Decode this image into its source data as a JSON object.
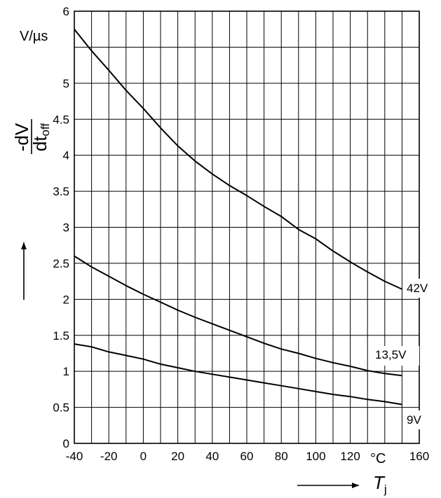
{
  "chart_data": {
    "type": "line",
    "title": "",
    "xlabel": "Tj",
    "xlabel_main": "T",
    "xlabel_sub": "j",
    "ylabel": "-dV/dtoff",
    "ylabel_num": "-dV",
    "ylabel_den_main": "dt",
    "ylabel_den_sub": "off",
    "y_unit": "V/µs",
    "x_unit": "°C",
    "xlim": [
      -40,
      160
    ],
    "ylim": [
      0,
      6
    ],
    "x_ticks": [
      -40,
      -20,
      0,
      20,
      40,
      60,
      80,
      100,
      120,
      160
    ],
    "x_tick_labels": [
      "-40",
      "-20",
      "0",
      "20",
      "40",
      "60",
      "80",
      "100",
      "120",
      "160"
    ],
    "y_ticks": [
      0,
      0.5,
      1,
      1.5,
      2,
      2.5,
      3,
      3.5,
      4,
      4.5,
      5,
      6
    ],
    "y_tick_labels": [
      "0",
      "0.5",
      "1",
      "1.5",
      "2",
      "2.5",
      "3",
      "3.5",
      "4",
      "4.5",
      "5",
      "6"
    ],
    "grid": true,
    "series": [
      {
        "name": "42V",
        "x": [
          -40,
          -30,
          -20,
          -10,
          0,
          10,
          20,
          30,
          40,
          50,
          60,
          70,
          80,
          90,
          100,
          110,
          120,
          130,
          140,
          150
        ],
        "y": [
          5.75,
          5.45,
          5.18,
          4.9,
          4.65,
          4.38,
          4.13,
          3.92,
          3.74,
          3.58,
          3.44,
          3.29,
          3.15,
          2.97,
          2.84,
          2.67,
          2.52,
          2.38,
          2.25,
          2.14
        ]
      },
      {
        "name": "13,5V",
        "x": [
          -40,
          -30,
          -20,
          -10,
          0,
          10,
          20,
          30,
          40,
          50,
          60,
          70,
          80,
          90,
          100,
          110,
          120,
          130,
          140,
          150
        ],
        "y": [
          2.6,
          2.45,
          2.32,
          2.19,
          2.07,
          1.96,
          1.85,
          1.75,
          1.66,
          1.57,
          1.48,
          1.39,
          1.31,
          1.25,
          1.18,
          1.12,
          1.07,
          1.01,
          0.97,
          0.94
        ]
      },
      {
        "name": "9V",
        "x": [
          -40,
          -30,
          -20,
          -10,
          0,
          10,
          20,
          30,
          40,
          50,
          60,
          70,
          80,
          90,
          100,
          110,
          120,
          130,
          140,
          150
        ],
        "y": [
          1.38,
          1.34,
          1.27,
          1.22,
          1.17,
          1.1,
          1.05,
          1.0,
          0.96,
          0.92,
          0.88,
          0.84,
          0.8,
          0.76,
          0.72,
          0.68,
          0.65,
          0.61,
          0.58,
          0.54
        ]
      }
    ]
  }
}
